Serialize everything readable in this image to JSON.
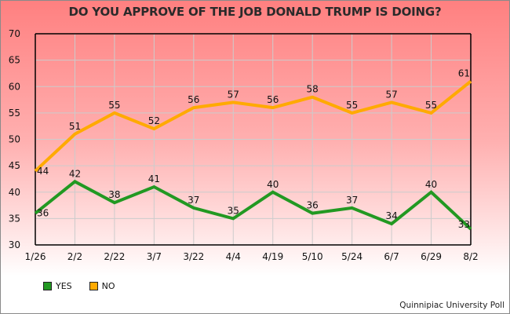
{
  "chart_data": {
    "type": "line",
    "title": "DO YOU APPROVE OF THE JOB DONALD TRUMP IS DOING?",
    "xlabel": "",
    "ylabel": "",
    "categories": [
      "1/26",
      "2/2",
      "2/22",
      "3/7",
      "3/22",
      "4/4",
      "4/19",
      "5/10",
      "5/24",
      "6/7",
      "6/29",
      "8/2"
    ],
    "ylim": [
      30,
      70
    ],
    "yticks": [
      30,
      35,
      40,
      45,
      50,
      55,
      60,
      65,
      70
    ],
    "grid": true,
    "legend_position": "bottom-left",
    "series": [
      {
        "name": "YES",
        "color": "#229922",
        "values": [
          36,
          42,
          38,
          41,
          37,
          35,
          40,
          36,
          37,
          34,
          40,
          33
        ]
      },
      {
        "name": "NO",
        "color": "#ffaa00",
        "values": [
          44,
          51,
          55,
          52,
          56,
          57,
          56,
          58,
          55,
          57,
          55,
          61
        ]
      }
    ],
    "source": "Quinnipiac University Poll"
  }
}
